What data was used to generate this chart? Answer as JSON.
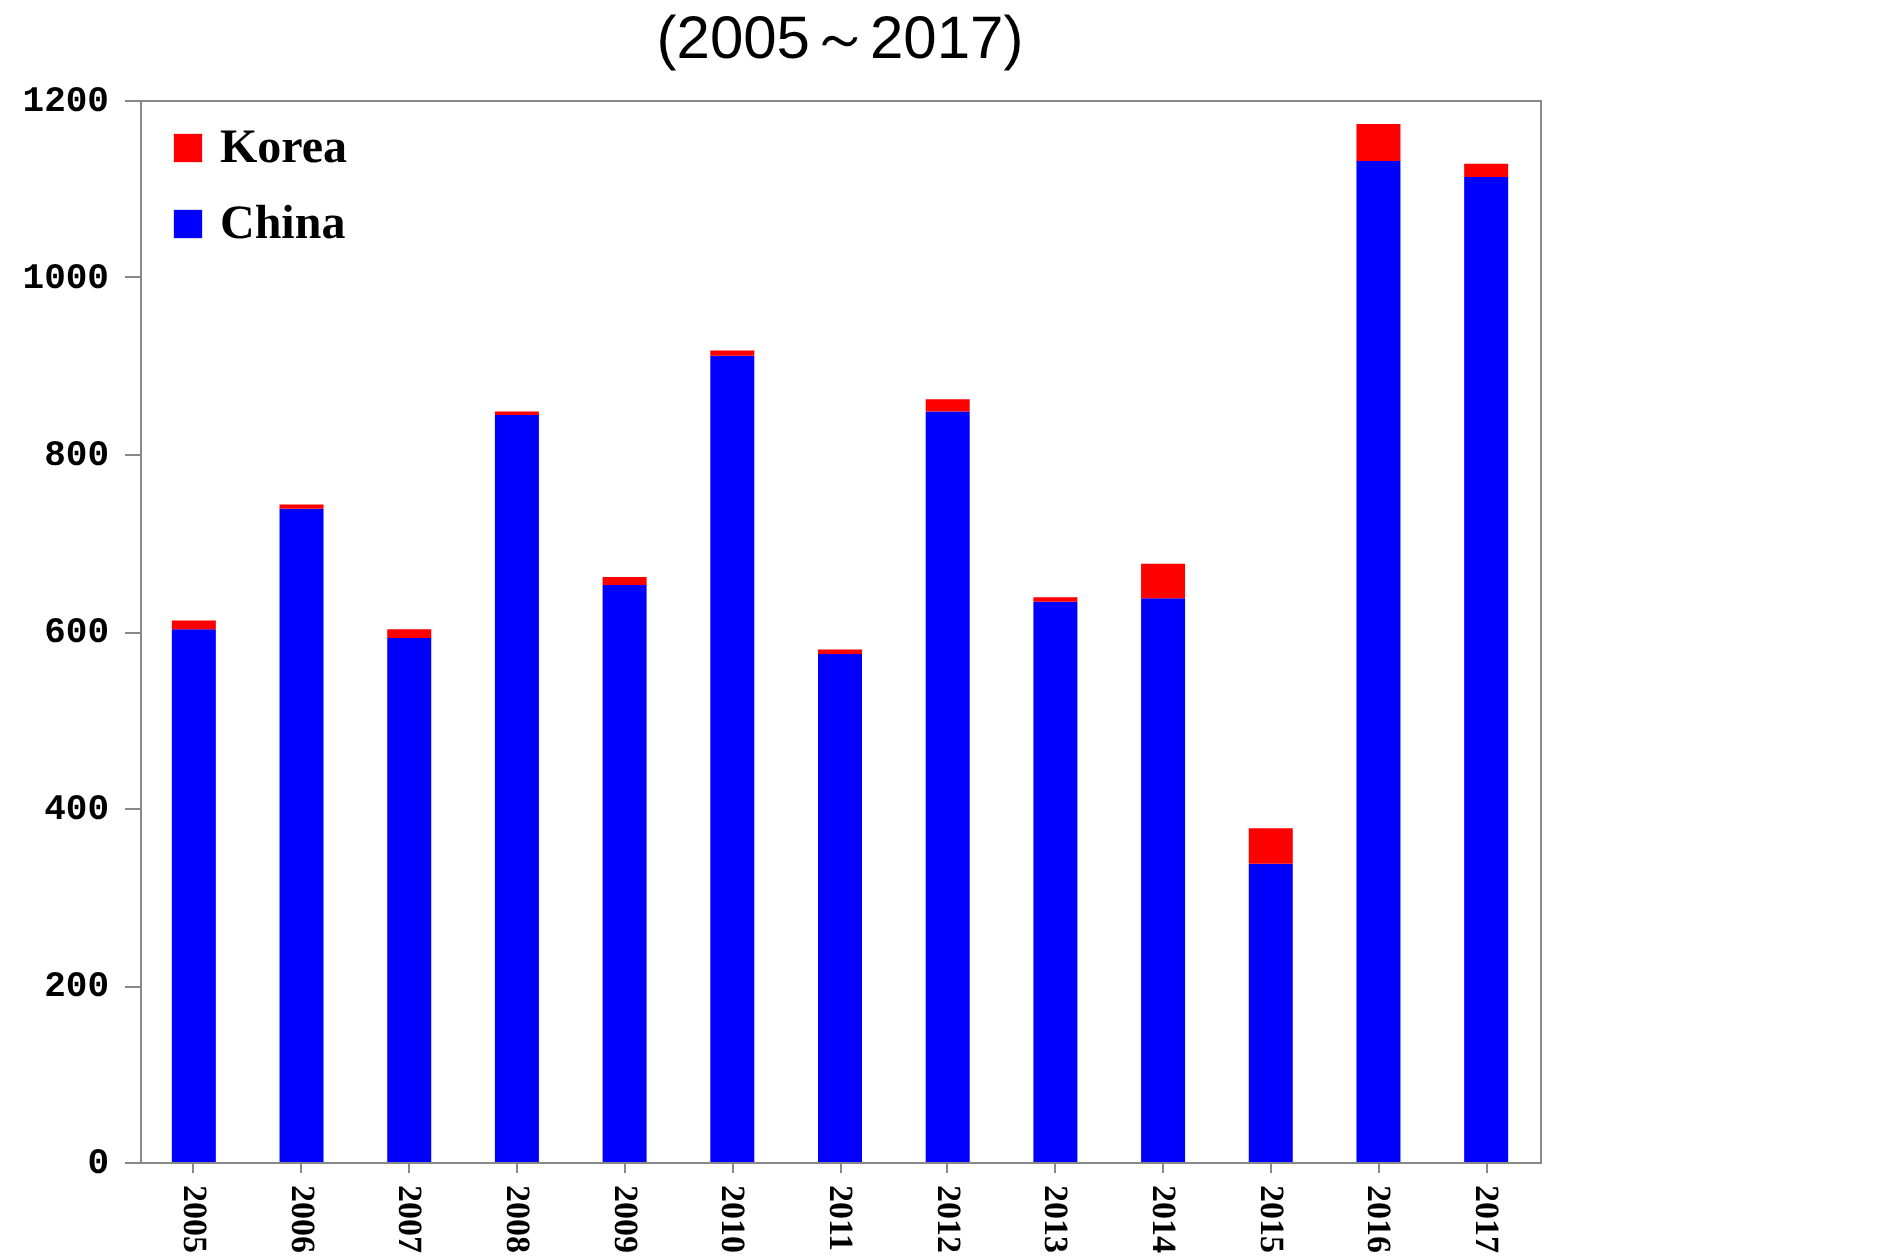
{
  "chart_data": {
    "type": "bar",
    "title": "(2005～2017)",
    "stacked": true,
    "categories": [
      "2005",
      "2006",
      "2007",
      "2008",
      "2009",
      "2010",
      "2011",
      "2012",
      "2013",
      "2014",
      "2015",
      "2016",
      "2017"
    ],
    "series": [
      {
        "name": "China",
        "color": "#0000ff",
        "values": [
          602,
          738,
          592,
          844,
          652,
          911,
          574,
          848,
          633,
          637,
          337,
          1131,
          1113
        ]
      },
      {
        "name": "Korea",
        "color": "#ff0000",
        "values": [
          10,
          5,
          10,
          4,
          9,
          6,
          5,
          14,
          5,
          39,
          40,
          42,
          15
        ]
      }
    ],
    "ylim": [
      0,
      1200
    ],
    "yticks": [
      0,
      200,
      400,
      600,
      800,
      1000,
      1200
    ],
    "grid": false,
    "legend": "top left"
  }
}
